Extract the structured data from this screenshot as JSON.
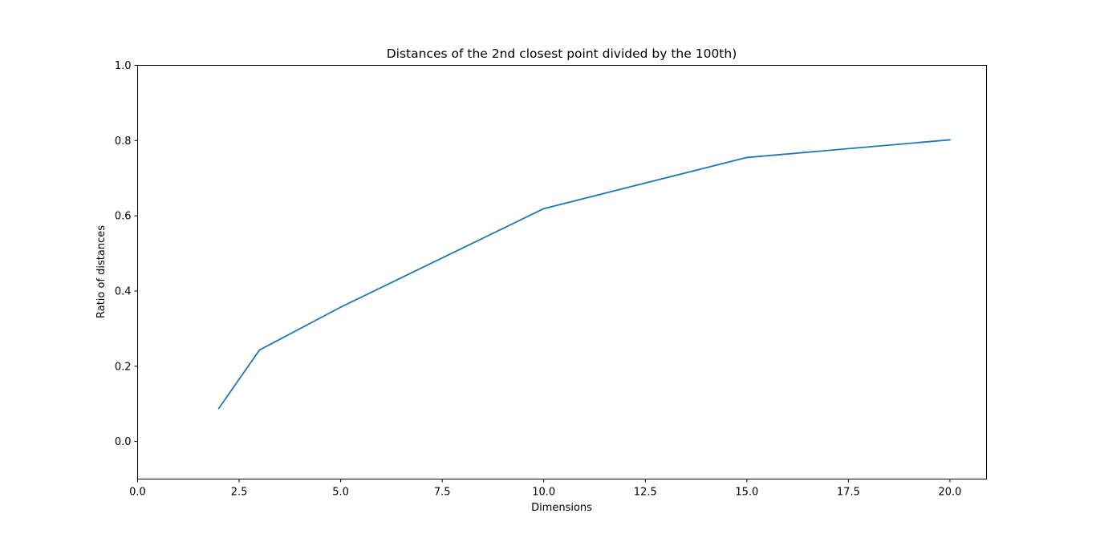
{
  "chart_data": {
    "type": "line",
    "title": "Distances of the 2nd closest point divided by the 100th)",
    "xlabel": "Dimensions",
    "ylabel": "Ratio of distances",
    "xlim": [
      0.0,
      20.9
    ],
    "ylim": [
      -0.1,
      1.0
    ],
    "xticks": [
      "0.0",
      "2.5",
      "5.0",
      "7.5",
      "10.0",
      "12.5",
      "15.0",
      "17.5",
      "20.0"
    ],
    "yticks": [
      "0.0",
      "0.2",
      "0.4",
      "0.6",
      "0.8",
      "1.0"
    ],
    "grid": false,
    "series": [
      {
        "color": "#1f77b4",
        "x": [
          2,
          3,
          5,
          10,
          15,
          20
        ],
        "y": [
          0.088,
          0.243,
          0.357,
          0.619,
          0.755,
          0.802
        ]
      }
    ]
  }
}
